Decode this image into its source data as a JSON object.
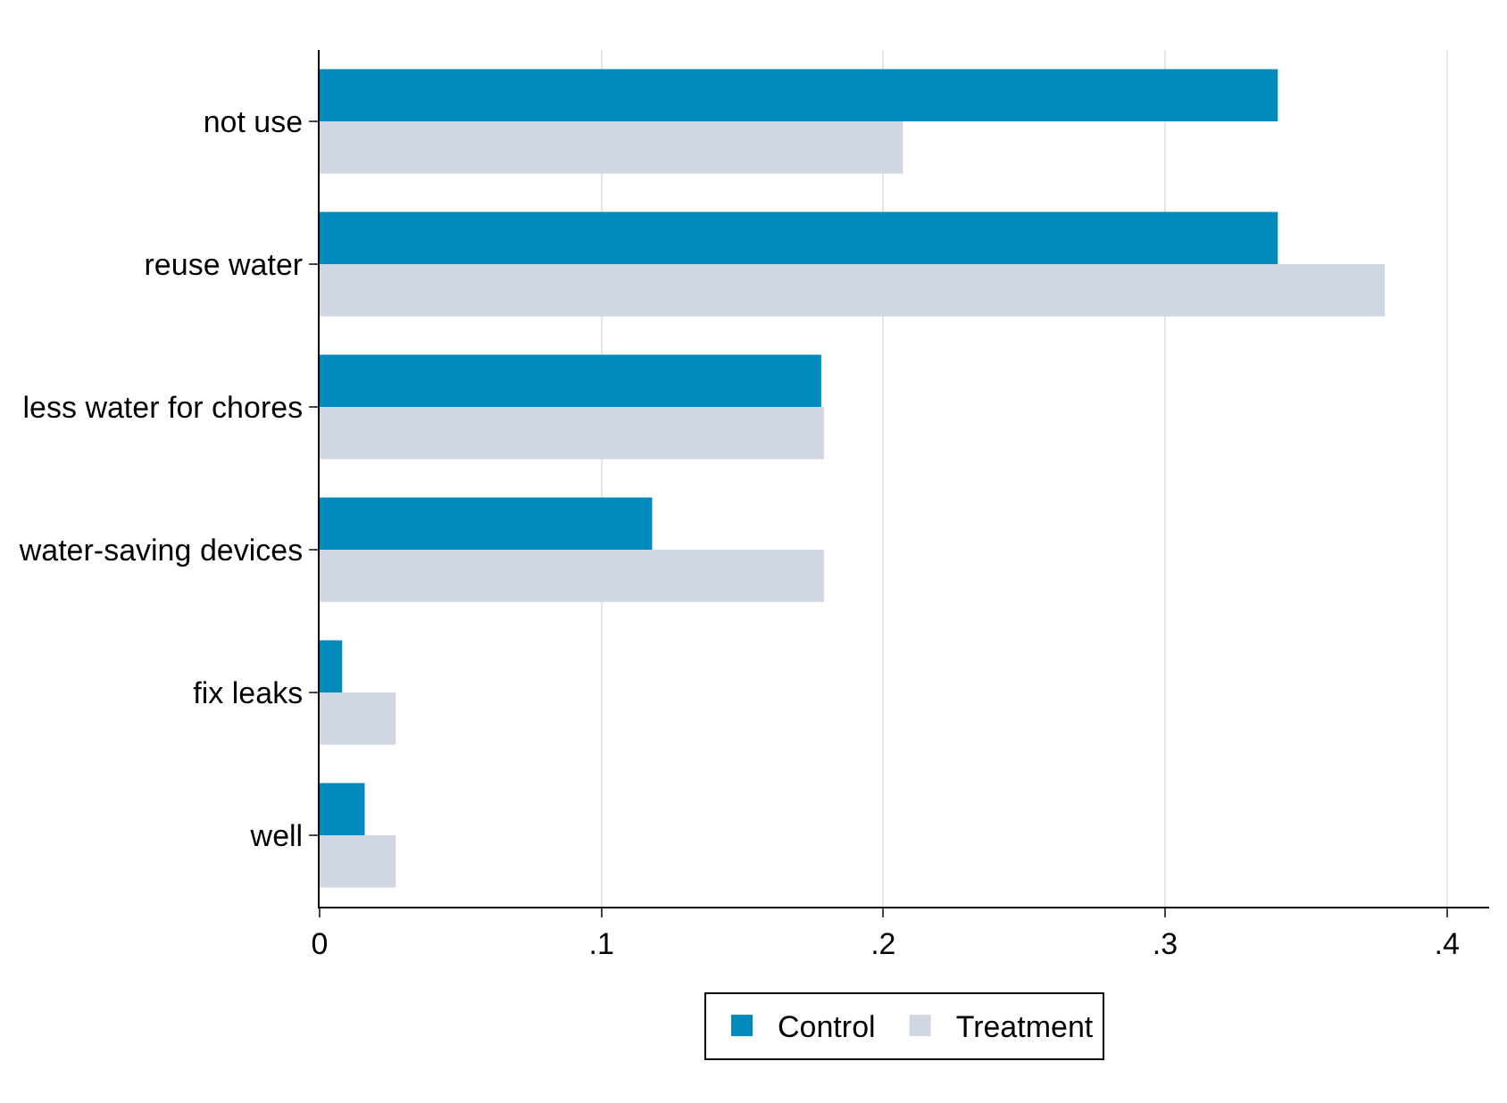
{
  "chart_data": {
    "type": "bar",
    "orientation": "horizontal",
    "categories": [
      "not use",
      "reuse water",
      "less water for chores",
      "water-saving devices",
      "fix leaks",
      "well"
    ],
    "series": [
      {
        "name": "Control",
        "color": "#008bbc",
        "values": [
          0.34,
          0.34,
          0.178,
          0.118,
          0.008,
          0.016
        ]
      },
      {
        "name": "Treatment",
        "color": "#d0d6e2",
        "values": [
          0.207,
          0.378,
          0.179,
          0.179,
          0.027,
          0.027
        ]
      }
    ],
    "xlim": [
      0,
      0.415
    ],
    "xticks": [
      0,
      {
        "value": 0.1,
        "label": ".1"
      },
      {
        "value": 0.2,
        "label": ".2"
      },
      {
        "value": 0.3,
        "label": ".3"
      },
      {
        "value": 0.4,
        "label": ".4"
      }
    ],
    "grid": "x",
    "legend": "bottom"
  }
}
